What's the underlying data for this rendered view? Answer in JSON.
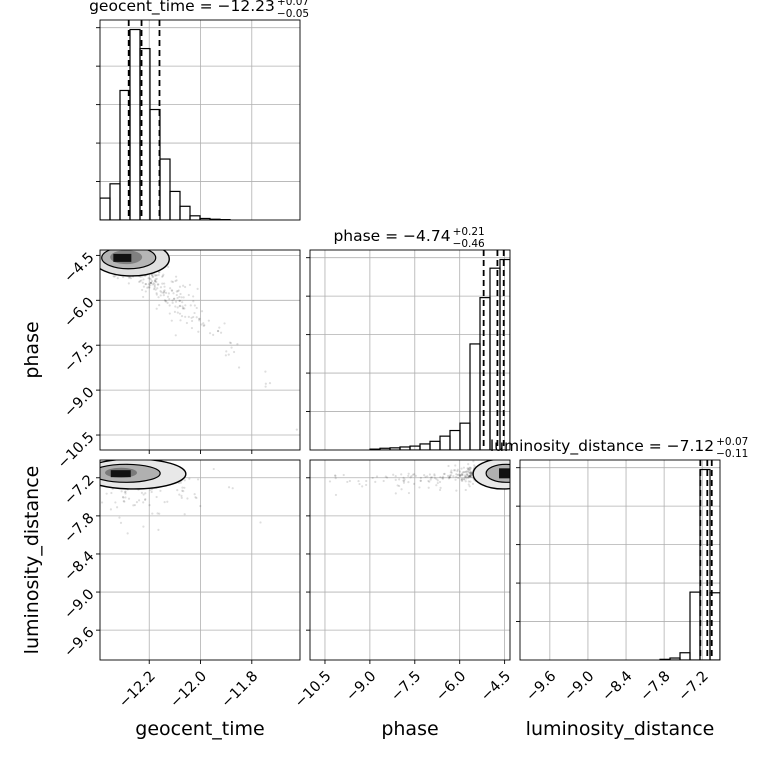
{
  "chart_data": {
    "type": "corner",
    "parameters": [
      "geocent_time",
      "phase",
      "luminosity_distance"
    ],
    "titles": [
      {
        "label": "geocent_time = −12.23",
        "sup": "+0.07",
        "sub": "−0.05"
      },
      {
        "label": "phase = −4.74",
        "sup": "+0.21",
        "sub": "−0.46"
      },
      {
        "label": "luminosity_distance = −7.12",
        "sup": "+0.07",
        "sub": "−0.11"
      }
    ],
    "ranges": [
      [
        -12.392,
        -11.612
      ],
      [
        -11.0,
        -4.32
      ],
      [
        -10.07,
        -6.92
      ]
    ],
    "ticks": [
      {
        "values": [
          -12.2,
          -12.0,
          -11.8
        ],
        "labels": [
          "−12.2",
          "−12.0",
          "−11.8"
        ]
      },
      {
        "values": [
          -10.5,
          -9.0,
          -7.5,
          -6.0,
          -4.5
        ],
        "labels": [
          "−10.5",
          "−9.0",
          "−7.5",
          "−6.0",
          "−4.5"
        ]
      },
      {
        "values": [
          -9.6,
          -9.0,
          -8.4,
          -7.8,
          -7.2
        ],
        "labels": [
          "−9.6",
          "−9.0",
          "−8.4",
          "−7.8",
          "−7.2"
        ]
      }
    ],
    "quantiles": [
      [
        -12.28,
        -12.23,
        -12.16
      ],
      [
        -5.2,
        -4.74,
        -4.53
      ],
      [
        -7.23,
        -7.12,
        -7.05
      ]
    ],
    "histograms": [
      {
        "edges": [
          -12.392,
          -12.353,
          -12.314,
          -12.275,
          -12.236,
          -12.197,
          -12.158,
          -12.119,
          -12.08,
          -12.041,
          -12.002,
          -11.963,
          -11.924,
          -11.885,
          -11.846,
          -11.807,
          -11.768,
          -11.729,
          -11.69,
          -11.651,
          -11.612
        ],
        "counts": [
          115,
          190,
          680,
          1000,
          900,
          580,
          320,
          150,
          72,
          22,
          8,
          4,
          2,
          0,
          0,
          0,
          0,
          0,
          0,
          0
        ]
      },
      {
        "edges": [
          -11.0,
          -10.666,
          -10.332,
          -9.998,
          -9.664,
          -9.33,
          -8.996,
          -8.662,
          -8.328,
          -7.994,
          -7.66,
          -7.326,
          -6.992,
          -6.658,
          -6.324,
          -5.99,
          -5.656,
          -5.322,
          -4.988,
          -4.654,
          -4.32
        ],
        "counts": [
          0,
          0,
          0,
          0,
          0,
          0,
          2,
          4,
          5,
          7,
          9,
          14,
          20,
          32,
          45,
          62,
          245,
          352,
          420,
          440
        ]
      },
      {
        "edges": [
          -10.07,
          -9.9125,
          -9.755,
          -9.5975,
          -9.44,
          -9.2825,
          -9.125,
          -8.9675,
          -8.81,
          -8.6525,
          -8.495,
          -8.3375,
          -8.18,
          -8.0225,
          -7.865,
          -7.7075,
          -7.55,
          -7.3925,
          -7.235,
          -7.0775,
          -6.92
        ],
        "counts": [
          0,
          0,
          0,
          0,
          0,
          0,
          0,
          0,
          0,
          0,
          0,
          0,
          0,
          0,
          1,
          3,
          11,
          103,
          289,
          102
        ]
      }
    ],
    "points_color": "#000000"
  }
}
